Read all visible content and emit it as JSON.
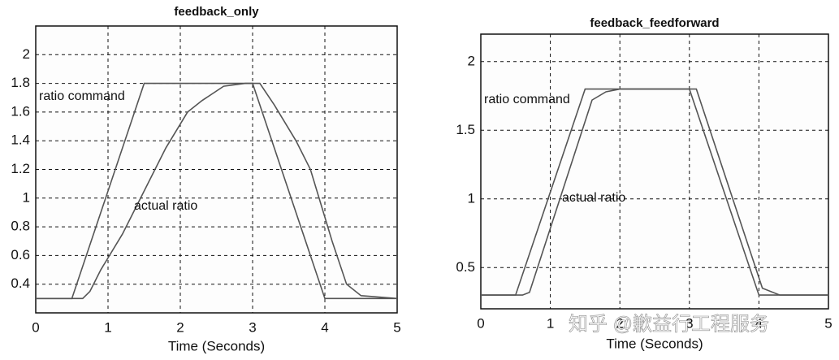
{
  "chart_data": [
    {
      "type": "line",
      "title": "feedback_only",
      "x_label": "Time (Seconds)",
      "xlim": [
        0,
        5
      ],
      "xticks": [
        0,
        1,
        2,
        3,
        4,
        5
      ],
      "ylim": [
        0.2,
        2.2
      ],
      "yticks": [
        0.4,
        0.6,
        0.8,
        1,
        1.2,
        1.4,
        1.6,
        1.8,
        2
      ],
      "grid": true,
      "series": [
        {
          "name": "ratio command",
          "color": "#555555",
          "x": [
            0,
            0.5,
            1.5,
            3,
            4,
            5
          ],
          "values": [
            0.3,
            0.3,
            1.8,
            1.8,
            0.3,
            0.3
          ]
        },
        {
          "name": "actual ratio",
          "color": "#555555",
          "x": [
            0,
            0.65,
            0.75,
            0.9,
            1.2,
            1.5,
            1.8,
            2.1,
            2.3,
            2.6,
            2.9,
            3.1,
            3.3,
            3.6,
            3.8,
            4.1,
            4.3,
            4.5,
            5
          ],
          "values": [
            0.3,
            0.3,
            0.35,
            0.5,
            0.75,
            1.05,
            1.35,
            1.6,
            1.68,
            1.78,
            1.8,
            1.8,
            1.65,
            1.4,
            1.2,
            0.7,
            0.4,
            0.32,
            0.3
          ]
        }
      ]
    },
    {
      "type": "line",
      "title": "feedback_feedforward",
      "x_label": "Time (Seconds)",
      "xlim": [
        0,
        5
      ],
      "xticks": [
        0,
        1,
        2,
        3,
        4,
        5
      ],
      "ylim": [
        0.2,
        2.2
      ],
      "yticks": [
        0.5,
        1,
        1.5,
        2
      ],
      "grid": true,
      "series": [
        {
          "name": "ratio command",
          "color": "#555555",
          "x": [
            0,
            0.5,
            1.5,
            3,
            4,
            5
          ],
          "values": [
            0.3,
            0.3,
            1.8,
            1.8,
            0.3,
            0.3
          ]
        },
        {
          "name": "actual ratio",
          "color": "#555555",
          "x": [
            0,
            0.6,
            0.7,
            1.6,
            1.8,
            2,
            3.1,
            4.05,
            4.3,
            5
          ],
          "values": [
            0.3,
            0.3,
            0.32,
            1.72,
            1.78,
            1.8,
            1.8,
            0.35,
            0.3,
            0.3
          ]
        }
      ]
    }
  ],
  "watermark": "知乎 @歉益行工程服务"
}
